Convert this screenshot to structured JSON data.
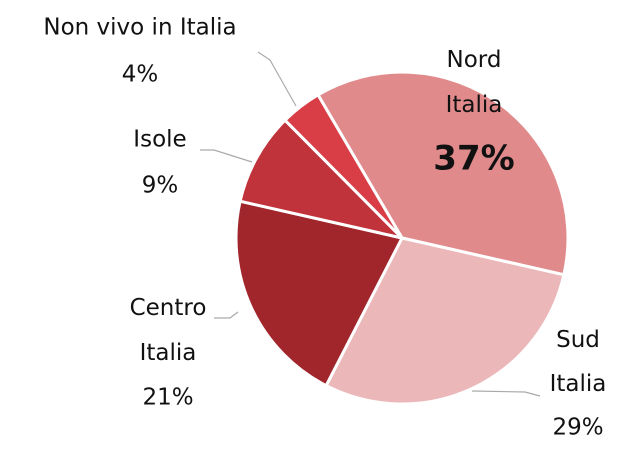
{
  "chart_data": {
    "type": "pie",
    "categories": [
      "Nord Italia",
      "Sud Italia",
      "Centro Italia",
      "Isole",
      "Non vivo in Italia"
    ],
    "values": [
      37,
      29,
      21,
      9,
      4
    ],
    "value_labels": [
      "37%",
      "29%",
      "21%",
      "9%",
      "4%"
    ],
    "colors": [
      "#e08a8b",
      "#ebb7b8",
      "#a0262c",
      "#c1333a",
      "#d93d45"
    ]
  }
}
